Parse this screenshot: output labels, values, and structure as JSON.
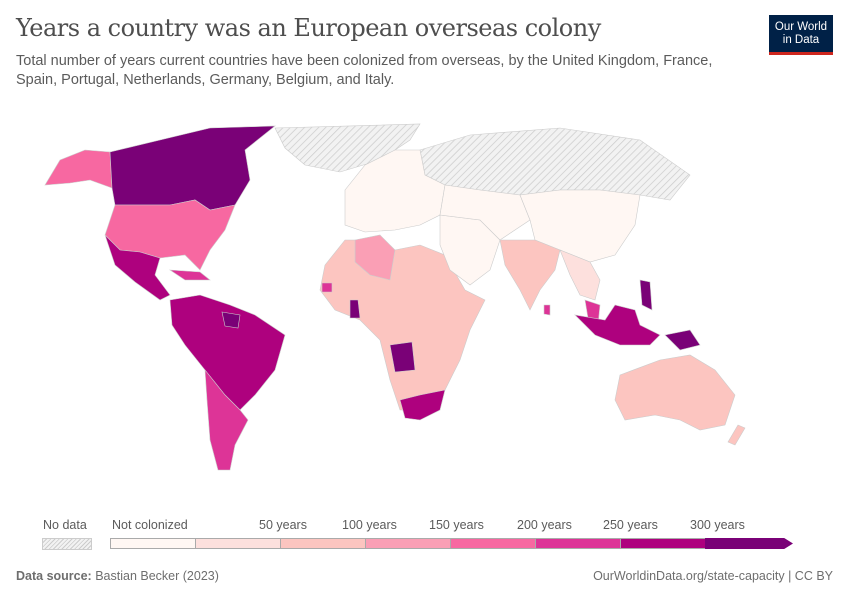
{
  "title": "Years a country was an European overseas colony",
  "subtitle": "Total number of years current countries have been colonized from overseas, by the United Kingdom, France, Spain, Portugal, Netherlands, Germany, Belgium, and Italy.",
  "logo": {
    "line1": "Our World",
    "line2": "in Data"
  },
  "legend": {
    "no_data_label": "No data",
    "bins": [
      {
        "label": "Not colonized",
        "color": "#fff7f3"
      },
      {
        "label": "",
        "color": "#fde0dd"
      },
      {
        "label": "50 years",
        "color": "#fcc5c0"
      },
      {
        "label": "100 years",
        "color": "#fa9fb5"
      },
      {
        "label": "150 years",
        "color": "#f768a1"
      },
      {
        "label": "200 years",
        "color": "#dd3497"
      },
      {
        "label": "250 years",
        "color": "#ae017e"
      },
      {
        "label": "300 years",
        "color": "#7a0177"
      }
    ]
  },
  "footer": {
    "source_label": "Data source:",
    "source": "Bastian Becker (2023)",
    "url": "OurWorldinData.org/state-capacity | CC BY"
  }
}
